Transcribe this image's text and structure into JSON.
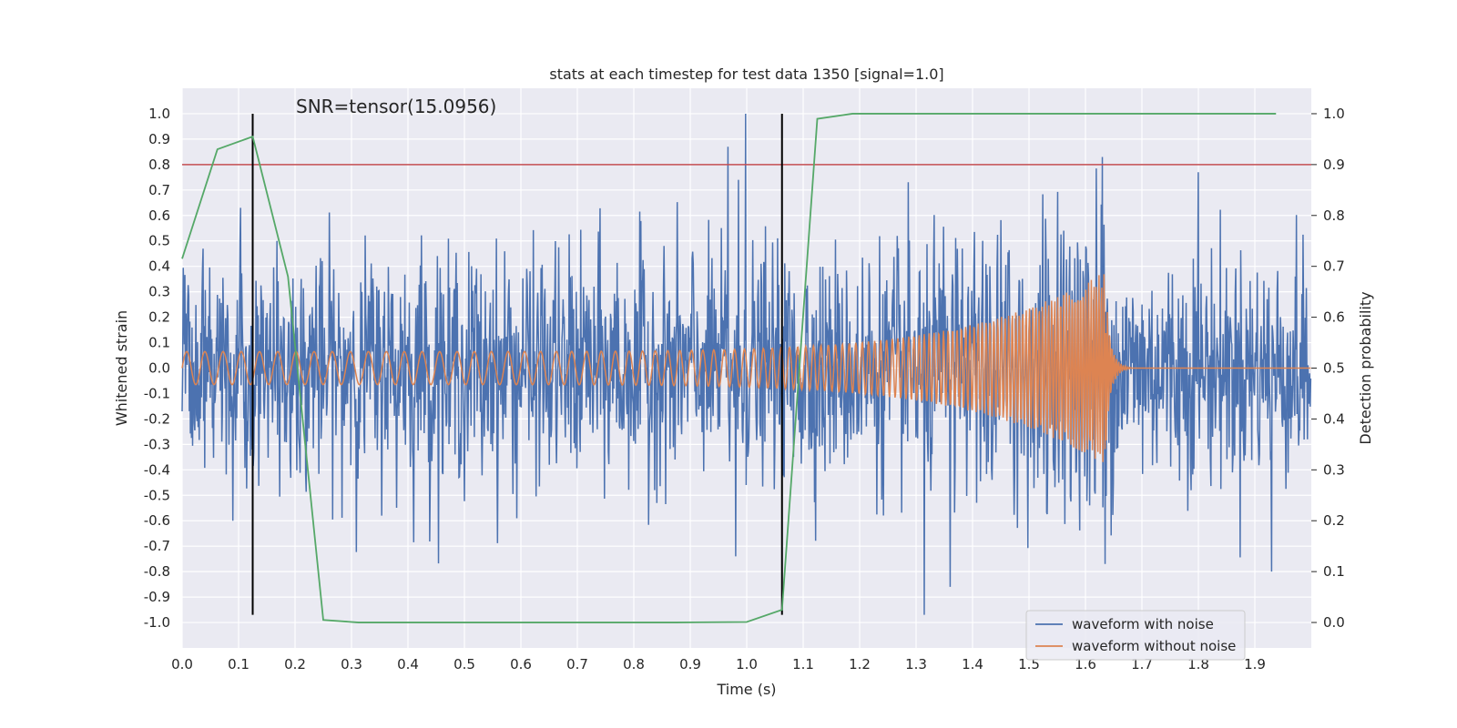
{
  "chart_data": {
    "type": "line",
    "title": "stats at each timestep for test data 1350 [signal=1.0]",
    "annotation": "SNR=tensor(15.0956)",
    "xlabel": "Time (s)",
    "ylabel": "Whitened strain",
    "y2label": "Detection probability",
    "xlim": [
      0.0,
      2.0
    ],
    "ylim": [
      -1.1,
      1.1
    ],
    "y2lim": [
      -0.05,
      1.05
    ],
    "xticks": [
      "0.0",
      "0.1",
      "0.2",
      "0.3",
      "0.4",
      "0.5",
      "0.6",
      "0.7",
      "0.8",
      "0.9",
      "1.0",
      "1.1",
      "1.2",
      "1.3",
      "1.4",
      "1.5",
      "1.6",
      "1.7",
      "1.8",
      "1.9"
    ],
    "yticks": [
      "1.0",
      "0.9",
      "0.8",
      "0.7",
      "0.6",
      "0.5",
      "0.4",
      "0.3",
      "0.2",
      "0.1",
      "0.0",
      "-0.1",
      "-0.2",
      "-0.3",
      "-0.4",
      "-0.5",
      "-0.6",
      "-0.7",
      "-0.8",
      "-0.9",
      "-1.0"
    ],
    "y2ticks": [
      "1.0",
      "0.9",
      "0.8",
      "0.7",
      "0.6",
      "0.5",
      "0.4",
      "0.3",
      "0.2",
      "0.1",
      "0.0"
    ],
    "grid": true,
    "legend_position": "lower-right",
    "series": [
      {
        "name": "waveform with noise",
        "axis": "left",
        "color": "#4c72b0",
        "description_stats": {
          "t_start": 0.0,
          "t_end": 2.0,
          "approx_std": 0.22,
          "min": -0.97,
          "max": 1.0
        },
        "peaks": [
          {
            "x": 0.104,
            "y": 0.63
          },
          {
            "x": 0.09,
            "y": -0.6
          },
          {
            "x": 0.967,
            "y": 0.87
          },
          {
            "x": 0.985,
            "y": 0.74
          },
          {
            "x": 0.998,
            "y": 1.0
          },
          {
            "x": 0.98,
            "y": -0.74
          },
          {
            "x": 1.314,
            "y": -0.97
          },
          {
            "x": 1.36,
            "y": -0.86
          },
          {
            "x": 1.63,
            "y": 0.83
          },
          {
            "x": 1.635,
            "y": -0.77
          },
          {
            "x": 1.8,
            "y": 0.77
          },
          {
            "x": 1.93,
            "y": -0.8
          }
        ]
      },
      {
        "name": "waveform without noise",
        "axis": "left",
        "color": "#dd8452",
        "chirp": {
          "t_start": 0.0,
          "t_merge": 1.635,
          "t_ringdown_end": 1.68,
          "amplitude_start": 0.065,
          "amplitude_peak": 0.38,
          "frequency_start_hz": 31,
          "frequency_end_hz": 120
        }
      },
      {
        "name": "detection probability",
        "axis": "right",
        "color": "#55a868",
        "x": [
          0.0,
          0.0625,
          0.125,
          0.1875,
          0.25,
          0.3125,
          0.375,
          0.4375,
          0.5,
          0.5625,
          0.625,
          0.6875,
          0.75,
          0.8125,
          0.875,
          0.9375,
          1.0,
          1.0625,
          1.125,
          1.1875,
          1.25,
          1.3125,
          1.375,
          1.4375,
          1.5,
          1.5625,
          1.625,
          1.6875,
          1.75,
          1.8125,
          1.875,
          1.9375
        ],
        "values": [
          0.715,
          0.93,
          0.955,
          0.68,
          0.005,
          0.0,
          0.0,
          0.0,
          0.0,
          0.0,
          0.0,
          0.0,
          0.0,
          0.0,
          0.0,
          0.0005,
          0.001,
          0.025,
          0.99,
          1.0,
          1.0,
          1.0,
          1.0,
          1.0,
          1.0,
          1.0,
          1.0,
          1.0,
          1.0,
          1.0,
          1.0,
          1.0
        ]
      }
    ],
    "threshold_line": {
      "axis": "right",
      "value": 0.9,
      "color": "#c44e52"
    },
    "vertical_markers": [
      {
        "x": 0.125,
        "ymin": -0.97,
        "ymax": 1.0,
        "color": "#000000"
      },
      {
        "x": 1.0625,
        "ymin": -0.97,
        "ymax": 1.0,
        "color": "#000000"
      }
    ]
  }
}
